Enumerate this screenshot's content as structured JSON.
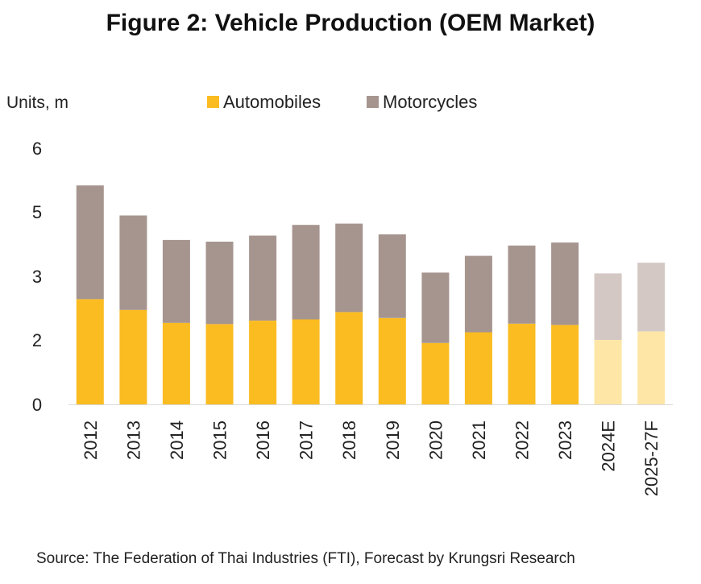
{
  "chart_data": {
    "type": "bar",
    "stacked": true,
    "title": "Figure 2: Vehicle Production (OEM Market)",
    "ylabel": "Units, m",
    "source": "Source: The Federation of Thai Industries (FTI), Forecast by Krungsri Research",
    "categories": [
      "2012",
      "2013",
      "2014",
      "2015",
      "2016",
      "2017",
      "2018",
      "2019",
      "2020",
      "2021",
      "2022",
      "2023",
      "2024E",
      "2025-27F"
    ],
    "forecast_categories": [
      "2024E",
      "2025-27F"
    ],
    "ytick_labels": [
      "0",
      "2",
      "3",
      "5",
      "6"
    ],
    "ylim": [
      0,
      6
    ],
    "legend_position": "top",
    "series": [
      {
        "name": "Automobiles",
        "color": "#FBBC21",
        "forecast_color": "#FDE6A6",
        "values": [
          2.45,
          2.2,
          1.9,
          1.87,
          1.95,
          1.98,
          2.15,
          2.01,
          1.43,
          1.68,
          1.88,
          1.85,
          1.5,
          1.7
        ]
      },
      {
        "name": "Motorcycles",
        "color": "#A6958F",
        "forecast_color": "#D4C8C5",
        "values": [
          2.65,
          2.2,
          1.93,
          1.92,
          1.98,
          2.2,
          2.06,
          1.95,
          1.64,
          1.78,
          1.82,
          1.92,
          1.55,
          1.6
        ]
      }
    ]
  }
}
